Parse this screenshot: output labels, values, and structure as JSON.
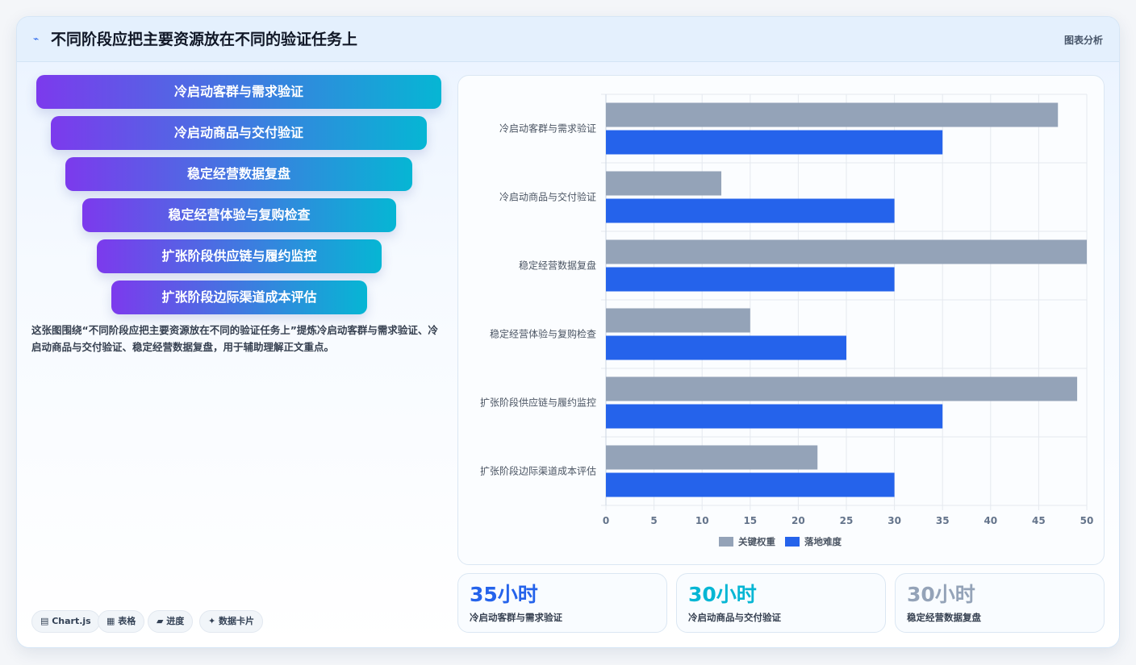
{
  "header": {
    "icon": "chart-line-icon",
    "title": "不同阶段应把主要资源放在不同的验证任务上",
    "tag": "图表分析"
  },
  "funnel": {
    "steps": [
      "冷启动客群与需求验证",
      "冷启动商品与交付验证",
      "稳定经营数据复盘",
      "稳定经营体验与复购检查",
      "扩张阶段供应链与履约监控",
      "扩张阶段边际渠道成本评估"
    ],
    "colors": {
      "start": "#7c3aed",
      "end": "#06b6d4"
    }
  },
  "description": "这张图围绕“不同阶段应把主要资源放在不同的验证任务上”提炼冷启动客群与需求验证、冷启动商品与交付验证、稳定经营数据复盘，用于辅助理解正文重点。",
  "chips": [
    {
      "icon": "chart-icon",
      "label": "▤ Chart.js"
    },
    {
      "icon": "table-icon",
      "label": "▦ 表格"
    },
    {
      "icon": "progress-icon",
      "label": "▰ 进度"
    },
    {
      "icon": "sparkle-icon",
      "label": "✦ 数据卡片"
    }
  ],
  "stats": [
    {
      "value": "35小时",
      "label": "冷启动客群与需求验证",
      "color": "#2563eb"
    },
    {
      "value": "30小时",
      "label": "冷启动商品与交付验证",
      "color": "#06b6d4"
    },
    {
      "value": "30小时",
      "label": "稳定经营数据复盘",
      "color": "#94a3b8"
    }
  ],
  "chart_data": {
    "type": "bar",
    "orientation": "horizontal",
    "categories": [
      "冷启动客群与需求验证",
      "冷启动商品与交付验证",
      "稳定经营数据复盘",
      "稳定经营体验与复购检查",
      "扩张阶段供应链与履约监控",
      "扩张阶段边际渠道成本评估"
    ],
    "series": [
      {
        "name": "关键权重",
        "color": "#94a3b8",
        "values": [
          47,
          12,
          50,
          15,
          49,
          22
        ]
      },
      {
        "name": "落地难度",
        "color": "#2563eb",
        "values": [
          35,
          30,
          30,
          25,
          35,
          30
        ]
      }
    ],
    "xlim": [
      0,
      50
    ],
    "xticks": [
      0,
      5,
      10,
      15,
      20,
      25,
      30,
      35,
      40,
      45,
      50
    ],
    "grid": true,
    "legend": "bottom"
  }
}
